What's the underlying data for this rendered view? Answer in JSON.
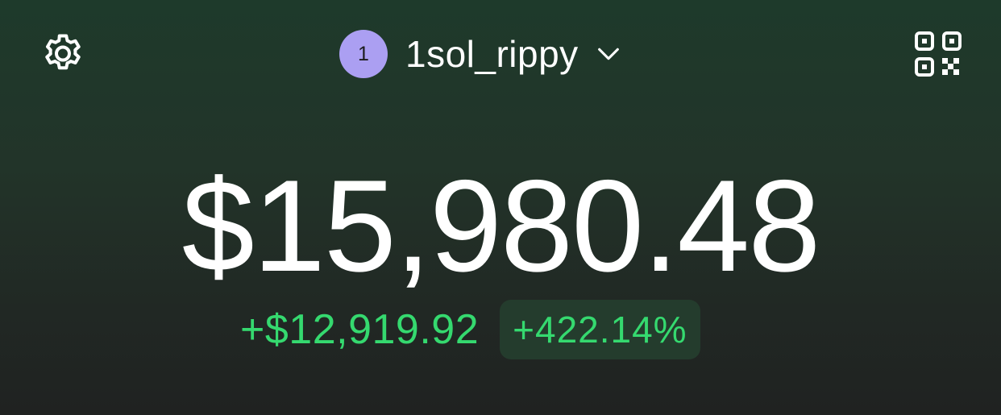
{
  "header": {
    "settings_icon": "gear-icon",
    "account": {
      "avatar_text": "1",
      "name": "1sol_rippy",
      "dropdown_icon": "chevron-down-icon",
      "avatar_color": "#ab9ff2"
    },
    "qr_icon": "qr-code-icon"
  },
  "portfolio": {
    "balance": "$15,980.48",
    "change_amount": "+$12,919.92",
    "change_percent": "+422.14%",
    "positive_color": "#35d96f"
  }
}
